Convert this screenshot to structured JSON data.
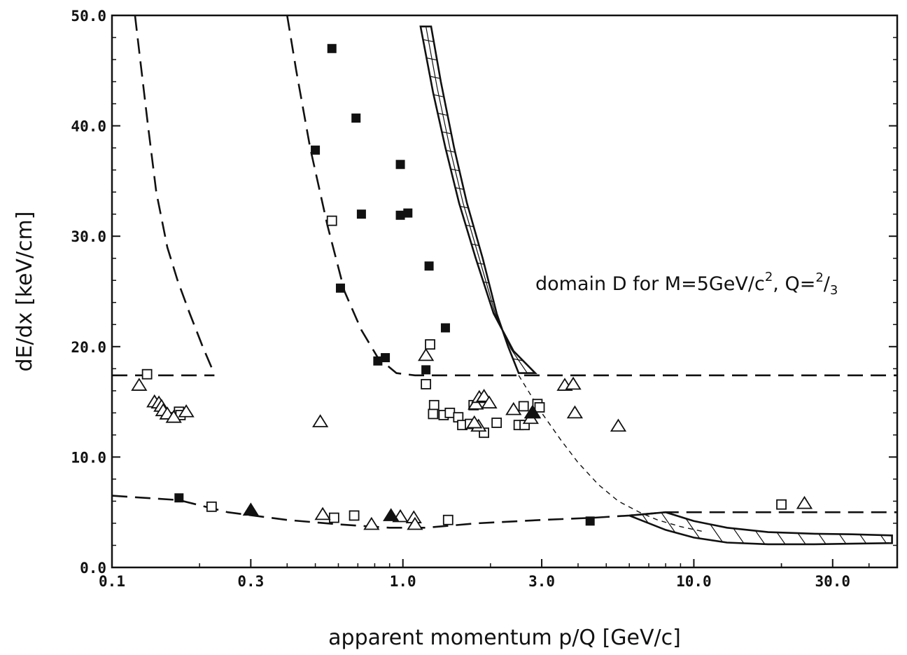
{
  "chart_data": {
    "type": "scatter",
    "xscale": "log",
    "xlim": [
      0.1,
      50
    ],
    "ylim": [
      0,
      50
    ],
    "grid": false,
    "xlabel": "apparent momentum  p/Q [GeV/c]",
    "ylabel": "dE/dx  [keV/cm]",
    "x_ticks": [
      0.1,
      0.3,
      1.0,
      3.0,
      10.0,
      30.0
    ],
    "x_tick_labels": [
      "0.1",
      "0.3",
      "1.0",
      "3.0",
      "10.0",
      "30.0"
    ],
    "y_ticks": [
      0,
      10,
      20,
      30,
      40,
      50
    ],
    "y_tick_labels": [
      "0.0",
      "10.0",
      "20.0",
      "30.0",
      "40.0",
      "50.0"
    ],
    "annotation": {
      "text_main": "domain D for M=5GeV/c",
      "sup": "2",
      "text_mid": ", Q=",
      "frac_num": "2",
      "frac_sep": "/",
      "frac_den": "3"
    },
    "series": [
      {
        "marker": "filled-square",
        "points": [
          [
            0.57,
            47.0
          ],
          [
            0.69,
            40.7
          ],
          [
            0.5,
            37.8
          ],
          [
            0.98,
            36.5
          ],
          [
            0.72,
            32.0
          ],
          [
            0.98,
            31.9
          ],
          [
            1.04,
            32.1
          ],
          [
            1.23,
            27.3
          ],
          [
            0.61,
            25.3
          ],
          [
            1.4,
            21.7
          ],
          [
            0.87,
            19.0
          ],
          [
            0.82,
            18.7
          ],
          [
            1.2,
            17.9
          ],
          [
            0.17,
            6.3
          ],
          [
            4.4,
            4.2
          ]
        ]
      },
      {
        "marker": "open-square",
        "points": [
          [
            0.132,
            17.5
          ],
          [
            0.165,
            13.6
          ],
          [
            0.17,
            14.1
          ],
          [
            0.172,
            13.8
          ],
          [
            0.57,
            31.4
          ],
          [
            1.2,
            16.6
          ],
          [
            1.24,
            20.2
          ],
          [
            1.28,
            14.7
          ],
          [
            1.27,
            13.9
          ],
          [
            1.38,
            13.8
          ],
          [
            1.45,
            14.0
          ],
          [
            1.55,
            13.6
          ],
          [
            1.6,
            12.9
          ],
          [
            1.7,
            13.0
          ],
          [
            1.75,
            14.7
          ],
          [
            1.85,
            14.9
          ],
          [
            1.9,
            12.2
          ],
          [
            2.1,
            13.1
          ],
          [
            2.6,
            14.6
          ],
          [
            2.9,
            14.8
          ],
          [
            2.95,
            14.5
          ],
          [
            2.5,
            12.9
          ],
          [
            2.62,
            12.9
          ],
          [
            0.22,
            5.5
          ],
          [
            0.58,
            4.5
          ],
          [
            0.68,
            4.7
          ],
          [
            1.43,
            4.3
          ],
          [
            20.0,
            5.7
          ]
        ]
      },
      {
        "marker": "open-triangle",
        "points": [
          [
            0.124,
            16.5
          ],
          [
            0.14,
            15.0
          ],
          [
            0.145,
            14.9
          ],
          [
            0.148,
            14.6
          ],
          [
            0.15,
            14.2
          ],
          [
            0.155,
            13.9
          ],
          [
            0.163,
            13.6
          ],
          [
            0.18,
            14.1
          ],
          [
            0.52,
            13.2
          ],
          [
            1.2,
            19.2
          ],
          [
            1.78,
            14.8
          ],
          [
            1.83,
            15.4
          ],
          [
            1.9,
            15.5
          ],
          [
            1.98,
            14.9
          ],
          [
            1.82,
            12.8
          ],
          [
            1.76,
            13.1
          ],
          [
            2.4,
            14.3
          ],
          [
            2.75,
            13.5
          ],
          [
            2.8,
            14.0
          ],
          [
            3.6,
            16.5
          ],
          [
            3.85,
            16.6
          ],
          [
            3.9,
            14.0
          ],
          [
            5.5,
            12.8
          ],
          [
            24.0,
            5.8
          ],
          [
            0.53,
            4.8
          ],
          [
            0.78,
            3.9
          ],
          [
            0.98,
            4.6
          ],
          [
            1.09,
            4.5
          ],
          [
            1.1,
            3.9
          ]
        ]
      },
      {
        "marker": "filled-triangle",
        "points": [
          [
            0.3,
            5.2
          ],
          [
            0.91,
            4.7
          ],
          [
            2.78,
            14.0
          ]
        ]
      }
    ],
    "curves": [
      {
        "name": "",
        "style": "dashed",
        "points": [
          [
            0.12,
            50.0
          ],
          [
            0.125,
            46.0
          ],
          [
            0.133,
            40.0
          ],
          [
            0.142,
            34.0
          ],
          [
            0.155,
            29.0
          ],
          [
            0.168,
            26.0
          ],
          [
            0.185,
            23.0
          ],
          [
            0.205,
            20.0
          ],
          [
            0.225,
            17.5
          ]
        ]
      },
      {
        "name": "",
        "style": "dashed",
        "points": [
          [
            0.1,
            17.4
          ],
          [
            0.225,
            17.4
          ]
        ]
      },
      {
        "name": "",
        "style": "dashed",
        "points": [
          [
            0.4,
            50.0
          ],
          [
            0.43,
            45.0
          ],
          [
            0.48,
            38.0
          ],
          [
            0.55,
            31.0
          ],
          [
            0.63,
            25.0
          ],
          [
            0.72,
            21.5
          ],
          [
            0.82,
            19.0
          ],
          [
            0.95,
            17.6
          ],
          [
            1.1,
            17.4
          ],
          [
            50.0,
            17.4
          ]
        ]
      },
      {
        "name": "",
        "style": "dashed",
        "points": [
          [
            0.1,
            6.5
          ],
          [
            0.17,
            6.1
          ],
          [
            0.25,
            5.0
          ],
          [
            0.4,
            4.3
          ],
          [
            0.6,
            3.9
          ],
          [
            0.9,
            3.6
          ],
          [
            1.2,
            3.6
          ],
          [
            1.8,
            4.0
          ],
          [
            3.0,
            4.3
          ],
          [
            4.5,
            4.5
          ],
          [
            6.0,
            4.7
          ],
          [
            8.0,
            5.0
          ],
          [
            50.0,
            5.0
          ]
        ]
      },
      {
        "name": "",
        "style": "thin-dashed",
        "points": [
          [
            2.5,
            17.4
          ],
          [
            3.0,
            14.0
          ],
          [
            3.5,
            11.5
          ],
          [
            4.0,
            9.5
          ],
          [
            4.7,
            7.5
          ],
          [
            5.5,
            6.0
          ],
          [
            6.5,
            5.0
          ],
          [
            7.5,
            4.3
          ],
          [
            9.0,
            3.7
          ],
          [
            11.0,
            3.2
          ]
        ]
      }
    ],
    "bands": [
      {
        "name": "",
        "hatch": "cross",
        "upper": [
          [
            1.15,
            49.0
          ],
          [
            1.27,
            43.0
          ],
          [
            1.4,
            38.0
          ],
          [
            1.56,
            33.0
          ],
          [
            1.78,
            28.0
          ],
          [
            2.05,
            23.0
          ],
          [
            2.4,
            19.6
          ],
          [
            2.85,
            17.6
          ]
        ],
        "lower": [
          [
            1.25,
            49.0
          ],
          [
            1.35,
            44.0
          ],
          [
            1.5,
            38.0
          ],
          [
            1.66,
            33.0
          ],
          [
            1.88,
            28.0
          ],
          [
            2.1,
            23.0
          ],
          [
            2.3,
            20.0
          ],
          [
            2.5,
            17.6
          ]
        ],
        "top_left_x": 1.15,
        "top_right_x": 2.05,
        "bottom_left_x": 2.05,
        "bottom_right_x": 2.85
      },
      {
        "name": "",
        "hatch": "diagonal",
        "upper": [
          [
            6.0,
            4.7
          ],
          [
            8.0,
            5.0
          ],
          [
            10.0,
            4.2
          ],
          [
            13.0,
            3.6
          ],
          [
            18.0,
            3.2
          ],
          [
            26.0,
            3.05
          ],
          [
            35.0,
            3.0
          ],
          [
            48.0,
            2.9
          ]
        ],
        "lower": [
          [
            6.0,
            4.7
          ],
          [
            8.0,
            3.4
          ],
          [
            10.0,
            2.7
          ],
          [
            13.0,
            2.25
          ],
          [
            18.0,
            2.1
          ],
          [
            26.0,
            2.1
          ],
          [
            35.0,
            2.15
          ],
          [
            48.0,
            2.2
          ]
        ]
      }
    ]
  }
}
